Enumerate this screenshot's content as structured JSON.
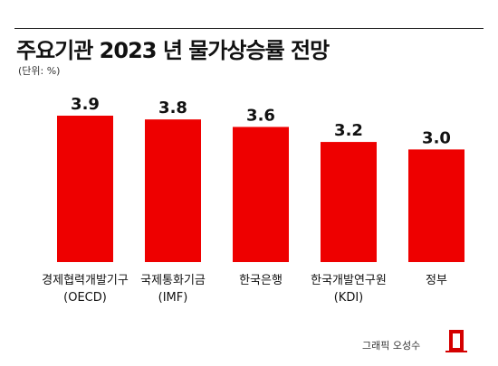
{
  "header": {
    "title": "주요기관 2023 년 물가상승률 전망",
    "unit": "(단위: %)"
  },
  "colors": {
    "bar": "#ee0000",
    "logo": "#d40000"
  },
  "chart_data": {
    "type": "bar",
    "title": "주요기관 2023 년 물가상승률 전망",
    "ylabel": "",
    "xlabel": "",
    "categories": [
      [
        "경제협력개발기구",
        "(OECD)"
      ],
      [
        "국제통화기금",
        "(IMF)"
      ],
      [
        "한국은행"
      ],
      [
        "한국개발연구원",
        "(KDI)"
      ],
      [
        "정부"
      ]
    ],
    "values": [
      3.9,
      3.8,
      3.6,
      3.2,
      3.0
    ],
    "value_labels": [
      "3.9",
      "3.8",
      "3.6",
      "3.2",
      "3.0"
    ],
    "ylim": [
      0,
      3.9
    ],
    "grid": false
  },
  "footer": {
    "credit": "그래픽 오성수",
    "logo_icon": "red-rectangle-logo-icon"
  }
}
